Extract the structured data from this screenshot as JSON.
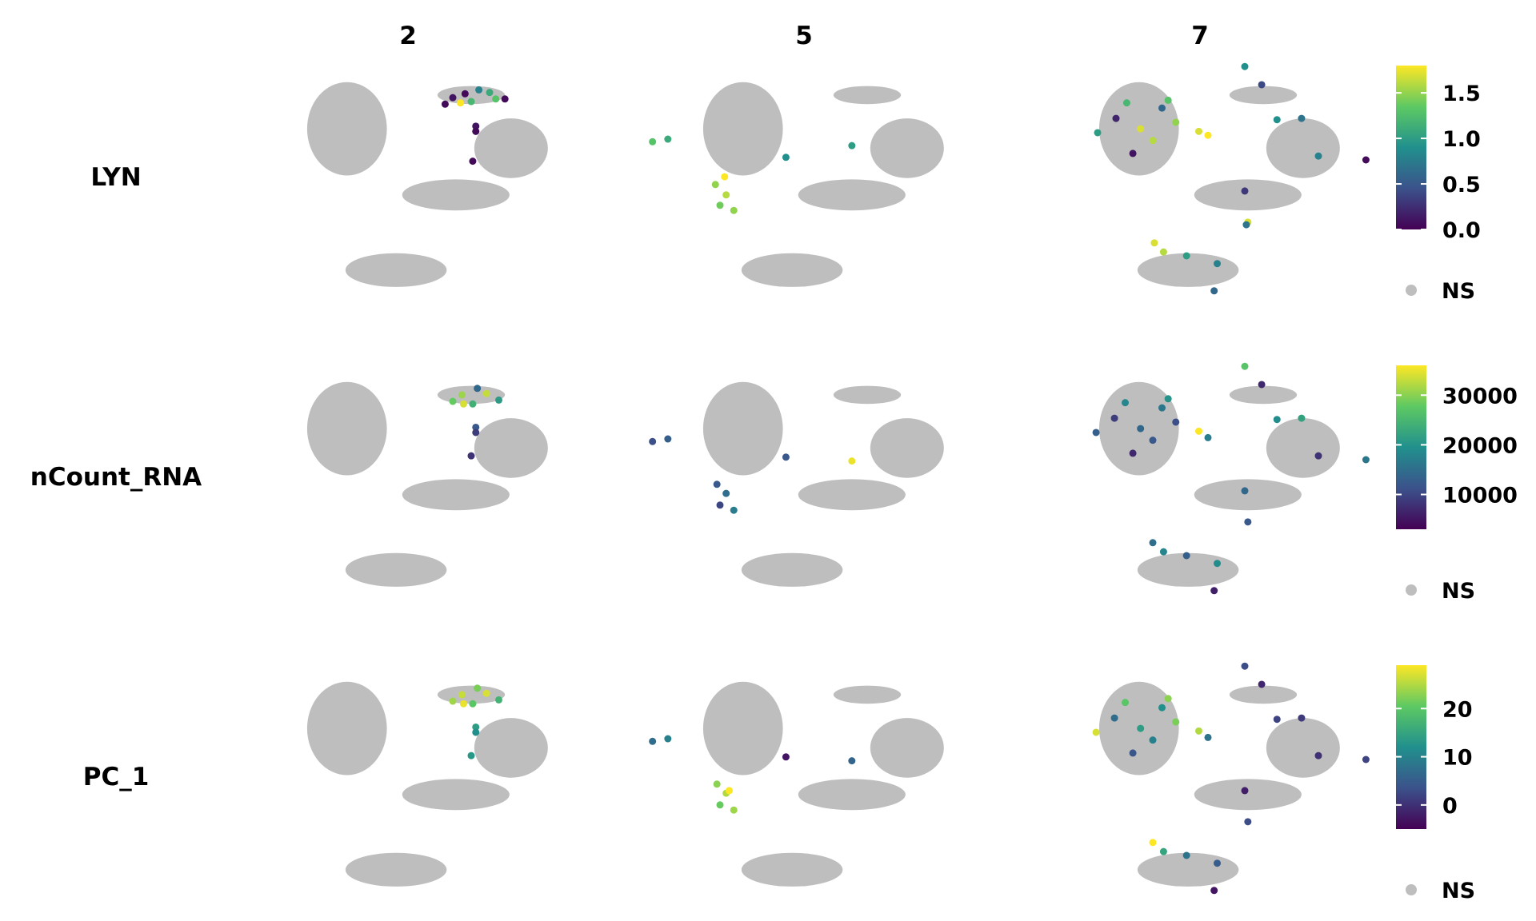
{
  "chart_data": {
    "type": "scatter",
    "title": "",
    "columns": [
      "2",
      "5",
      "7"
    ],
    "rows": [
      {
        "feature": "LYN",
        "scale": {
          "min": 0.0,
          "max": 1.8,
          "ticks": [
            "0.0",
            "0.5",
            "1.0",
            "1.5"
          ],
          "tick_values": [
            0.0,
            0.5,
            1.0,
            1.5
          ]
        },
        "panels": [
          {
            "column": "2",
            "points": [
              {
                "x": 3.2,
                "y": 4.2,
                "v": 0.05
              },
              {
                "x": 2.4,
                "y": 3.9,
                "v": 0.1
              },
              {
                "x": 3.6,
                "y": 3.6,
                "v": 1.2
              },
              {
                "x": 4.8,
                "y": 4.3,
                "v": 1.1
              },
              {
                "x": 5.2,
                "y": 3.8,
                "v": 1.3
              },
              {
                "x": 4.1,
                "y": 4.5,
                "v": 0.8
              },
              {
                "x": 2.9,
                "y": 3.5,
                "v": 1.8
              },
              {
                "x": 3.9,
                "y": 1.7,
                "v": 0.1
              },
              {
                "x": 3.9,
                "y": 1.3,
                "v": 0.05
              },
              {
                "x": 3.7,
                "y": -1.0,
                "v": 0.05
              },
              {
                "x": 1.9,
                "y": 3.4,
                "v": 0.05
              },
              {
                "x": 5.8,
                "y": 3.8,
                "v": 0.05
              }
            ]
          },
          {
            "column": "5",
            "points": [
              {
                "x": -6.3,
                "y": -2.8,
                "v": 1.5
              },
              {
                "x": -5.6,
                "y": -3.6,
                "v": 1.6
              },
              {
                "x": -6.0,
                "y": -4.4,
                "v": 1.4
              },
              {
                "x": -5.1,
                "y": -4.8,
                "v": 1.5
              },
              {
                "x": -5.7,
                "y": -2.2,
                "v": 1.8
              },
              {
                "x": -10.4,
                "y": 0.5,
                "v": 1.3
              },
              {
                "x": -9.4,
                "y": 0.7,
                "v": 1.1
              },
              {
                "x": 2.6,
                "y": 0.2,
                "v": 1.0
              },
              {
                "x": -1.7,
                "y": -0.7,
                "v": 0.9
              }
            ]
          },
          {
            "column": "7",
            "points": [
              {
                "x": -5.3,
                "y": 3.5,
                "v": 1.2
              },
              {
                "x": -6.0,
                "y": 2.3,
                "v": 0.2
              },
              {
                "x": -4.4,
                "y": 1.5,
                "v": 1.7
              },
              {
                "x": -3.0,
                "y": 3.1,
                "v": 0.6
              },
              {
                "x": -2.1,
                "y": 2.0,
                "v": 1.5
              },
              {
                "x": -7.2,
                "y": 1.2,
                "v": 1.0
              },
              {
                "x": -4.9,
                "y": -0.4,
                "v": 0.1
              },
              {
                "x": -2.6,
                "y": 3.7,
                "v": 1.3
              },
              {
                "x": -3.6,
                "y": 0.6,
                "v": 1.6
              },
              {
                "x": -0.6,
                "y": 1.3,
                "v": 1.7
              },
              {
                "x": 0.0,
                "y": 1.0,
                "v": 1.8
              },
              {
                "x": -3.5,
                "y": -7.3,
                "v": 1.7
              },
              {
                "x": -2.9,
                "y": -8.0,
                "v": 1.6
              },
              {
                "x": -1.4,
                "y": -8.3,
                "v": 1.0
              },
              {
                "x": 0.6,
                "y": -8.9,
                "v": 0.8
              },
              {
                "x": 0.4,
                "y": -11.0,
                "v": 0.6
              },
              {
                "x": 2.4,
                "y": 6.3,
                "v": 0.9
              },
              {
                "x": 3.5,
                "y": 4.9,
                "v": 0.4
              },
              {
                "x": 4.5,
                "y": 2.2,
                "v": 0.9
              },
              {
                "x": 6.1,
                "y": 2.3,
                "v": 0.7
              },
              {
                "x": 7.2,
                "y": -0.6,
                "v": 0.8
              },
              {
                "x": 10.3,
                "y": -0.9,
                "v": 0.05
              },
              {
                "x": 2.4,
                "y": -3.3,
                "v": 0.3
              },
              {
                "x": 2.6,
                "y": -5.7,
                "v": 1.7
              },
              {
                "x": 2.5,
                "y": -5.9,
                "v": 0.7
              }
            ]
          }
        ]
      },
      {
        "feature": "nCount_RNA",
        "scale": {
          "min": 3000,
          "max": 36000,
          "ticks": [
            "10000",
            "20000",
            "30000"
          ],
          "tick_values": [
            10000,
            20000,
            30000
          ]
        },
        "panels": [
          {
            "column": "2",
            "points": [
              {
                "x": 3.0,
                "y": 4.1,
                "v": 31000
              },
              {
                "x": 2.4,
                "y": 3.6,
                "v": 28000
              },
              {
                "x": 3.7,
                "y": 3.4,
                "v": 24000
              },
              {
                "x": 4.6,
                "y": 4.2,
                "v": 33000
              },
              {
                "x": 5.4,
                "y": 3.7,
                "v": 21000
              },
              {
                "x": 4.0,
                "y": 4.6,
                "v": 14000
              },
              {
                "x": 3.1,
                "y": 3.4,
                "v": 34000
              },
              {
                "x": 3.9,
                "y": 1.6,
                "v": 12000
              },
              {
                "x": 3.9,
                "y": 1.2,
                "v": 9000
              },
              {
                "x": 3.6,
                "y": -0.6,
                "v": 8000
              }
            ]
          },
          {
            "column": "5",
            "points": [
              {
                "x": -6.2,
                "y": -2.8,
                "v": 12000
              },
              {
                "x": -5.6,
                "y": -3.5,
                "v": 15000
              },
              {
                "x": -6.0,
                "y": -4.4,
                "v": 10000
              },
              {
                "x": -5.1,
                "y": -4.8,
                "v": 17000
              },
              {
                "x": -10.4,
                "y": 0.5,
                "v": 11000
              },
              {
                "x": -9.4,
                "y": 0.7,
                "v": 13000
              },
              {
                "x": 2.6,
                "y": -1.0,
                "v": 35000
              },
              {
                "x": -1.7,
                "y": -0.7,
                "v": 12000
              }
            ]
          },
          {
            "column": "7",
            "points": [
              {
                "x": -5.4,
                "y": 3.5,
                "v": 18000
              },
              {
                "x": -6.1,
                "y": 2.3,
                "v": 9000
              },
              {
                "x": -4.4,
                "y": 1.5,
                "v": 14000
              },
              {
                "x": -3.0,
                "y": 3.1,
                "v": 16000
              },
              {
                "x": -2.1,
                "y": 2.0,
                "v": 11000
              },
              {
                "x": -7.3,
                "y": 1.2,
                "v": 13000
              },
              {
                "x": -4.9,
                "y": -0.4,
                "v": 7000
              },
              {
                "x": -2.6,
                "y": 3.8,
                "v": 20000
              },
              {
                "x": -3.6,
                "y": 0.6,
                "v": 12000
              },
              {
                "x": -0.6,
                "y": 1.3,
                "v": 36000
              },
              {
                "x": 0.0,
                "y": 0.8,
                "v": 17000
              },
              {
                "x": -3.6,
                "y": -7.3,
                "v": 15000
              },
              {
                "x": -2.9,
                "y": -8.0,
                "v": 18000
              },
              {
                "x": -1.4,
                "y": -8.3,
                "v": 13000
              },
              {
                "x": 0.6,
                "y": -8.9,
                "v": 19000
              },
              {
                "x": 0.4,
                "y": -11.0,
                "v": 6000
              },
              {
                "x": 2.4,
                "y": 6.3,
                "v": 27000
              },
              {
                "x": 3.5,
                "y": 4.9,
                "v": 7000
              },
              {
                "x": 4.5,
                "y": 2.2,
                "v": 19000
              },
              {
                "x": 6.1,
                "y": 2.3,
                "v": 22000
              },
              {
                "x": 7.2,
                "y": -0.6,
                "v": 8000
              },
              {
                "x": 10.3,
                "y": -0.9,
                "v": 16000
              },
              {
                "x": 2.4,
                "y": -3.3,
                "v": 14000
              },
              {
                "x": 2.6,
                "y": -5.7,
                "v": 12000
              }
            ]
          }
        ]
      },
      {
        "feature": "PC_1",
        "scale": {
          "min": -5,
          "max": 29,
          "ticks": [
            "0",
            "10",
            "20"
          ],
          "tick_values": [
            0,
            10,
            20
          ]
        },
        "panels": [
          {
            "column": "2",
            "points": [
              {
                "x": 3.0,
                "y": 4.1,
                "v": 26
              },
              {
                "x": 2.4,
                "y": 3.6,
                "v": 24
              },
              {
                "x": 3.7,
                "y": 3.4,
                "v": 20
              },
              {
                "x": 4.6,
                "y": 4.2,
                "v": 27
              },
              {
                "x": 5.4,
                "y": 3.7,
                "v": 17
              },
              {
                "x": 4.0,
                "y": 4.6,
                "v": 22
              },
              {
                "x": 3.1,
                "y": 3.4,
                "v": 28
              },
              {
                "x": 3.9,
                "y": 1.6,
                "v": 14
              },
              {
                "x": 3.9,
                "y": 1.2,
                "v": 12
              },
              {
                "x": 3.6,
                "y": -0.6,
                "v": 13
              }
            ]
          },
          {
            "column": "5",
            "points": [
              {
                "x": -6.2,
                "y": -2.8,
                "v": 23
              },
              {
                "x": -5.6,
                "y": -3.5,
                "v": 25
              },
              {
                "x": -6.0,
                "y": -4.4,
                "v": 21
              },
              {
                "x": -5.1,
                "y": -4.8,
                "v": 24
              },
              {
                "x": -5.4,
                "y": -3.3,
                "v": 29
              },
              {
                "x": -10.4,
                "y": 0.5,
                "v": 7
              },
              {
                "x": -9.4,
                "y": 0.7,
                "v": 10
              },
              {
                "x": 2.6,
                "y": -1.0,
                "v": 6
              },
              {
                "x": -1.7,
                "y": -0.7,
                "v": -3
              }
            ]
          },
          {
            "column": "7",
            "points": [
              {
                "x": -5.4,
                "y": 3.5,
                "v": 20
              },
              {
                "x": -6.1,
                "y": 2.3,
                "v": 7
              },
              {
                "x": -4.4,
                "y": 1.5,
                "v": 14
              },
              {
                "x": -3.0,
                "y": 3.1,
                "v": 12
              },
              {
                "x": -2.1,
                "y": 2.0,
                "v": 22
              },
              {
                "x": -7.3,
                "y": 1.2,
                "v": 27
              },
              {
                "x": -4.9,
                "y": -0.4,
                "v": 4
              },
              {
                "x": -2.6,
                "y": 3.8,
                "v": 23
              },
              {
                "x": -3.6,
                "y": 0.6,
                "v": 10
              },
              {
                "x": -0.6,
                "y": 1.3,
                "v": 25
              },
              {
                "x": 0.0,
                "y": 0.8,
                "v": 8
              },
              {
                "x": -3.6,
                "y": -7.3,
                "v": 29
              },
              {
                "x": -2.9,
                "y": -8.0,
                "v": 15
              },
              {
                "x": -1.4,
                "y": -8.3,
                "v": 8
              },
              {
                "x": 0.6,
                "y": -8.9,
                "v": 5
              },
              {
                "x": 0.4,
                "y": -11.0,
                "v": -3
              },
              {
                "x": 2.4,
                "y": 6.3,
                "v": 3
              },
              {
                "x": 3.5,
                "y": 4.9,
                "v": -1
              },
              {
                "x": 4.5,
                "y": 2.2,
                "v": 2
              },
              {
                "x": 6.1,
                "y": 2.3,
                "v": 1
              },
              {
                "x": 7.2,
                "y": -0.6,
                "v": 0
              },
              {
                "x": 10.3,
                "y": -0.9,
                "v": 2
              },
              {
                "x": 2.4,
                "y": -3.3,
                "v": -2
              },
              {
                "x": 2.6,
                "y": -5.7,
                "v": 3
              }
            ]
          }
        ]
      }
    ],
    "background_clusters": [
      {
        "name": "left-cluster",
        "cx": -4.5,
        "cy": 1.5,
        "rx": 2.6,
        "ry": 3.6
      },
      {
        "name": "right-top-cluster",
        "cx": 3.6,
        "cy": 4.1,
        "rx": 2.2,
        "ry": 0.7
      },
      {
        "name": "right-main-cluster",
        "cx": 6.2,
        "cy": 0.0,
        "rx": 2.4,
        "ry": 2.3
      },
      {
        "name": "right-tail-cluster",
        "cx": 2.6,
        "cy": -3.6,
        "rx": 3.5,
        "ry": 1.2
      },
      {
        "name": "bottom-ring-cluster",
        "cx": -1.3,
        "cy": -9.4,
        "rx": 3.3,
        "ry": 1.3
      }
    ],
    "xlim": [
      -12,
      12
    ],
    "ylim": [
      -12,
      6.5
    ],
    "legend": {
      "placement": "right",
      "na_label": "NS",
      "na_color": "#bebebe"
    },
    "colormap": [
      "#440154",
      "#3b528b",
      "#21908d",
      "#5dc963",
      "#fde725"
    ],
    "grid": false
  }
}
